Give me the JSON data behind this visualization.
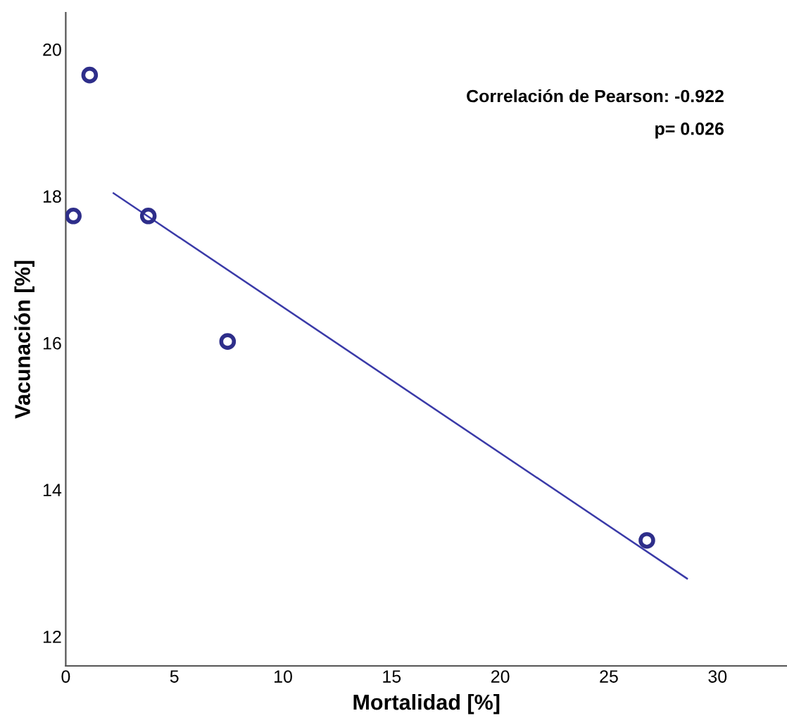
{
  "chart_data": {
    "type": "scatter",
    "xlabel": "Mortalidad [%]",
    "ylabel": "Vacunación [%]",
    "annotations": [
      "Correlación de Pearson: -0.922",
      "p= 0.026"
    ],
    "series": [
      {
        "color": "#2e2e8a",
        "x": [
          1.1,
          0.35,
          3.8,
          7.45,
          26.75
        ],
        "values": [
          19.65,
          17.73,
          17.73,
          16.02,
          13.31
        ],
        "marker": "circle"
      },
      {
        "type": "line",
        "color": "#3a3aa8",
        "x": [
          2.2,
          28.6
        ],
        "values": [
          18.04,
          12.79
        ],
        "line_style": "solid"
      }
    ],
    "xlim": [
      0,
      33.2
    ],
    "ylim": [
      11.6,
      20.5
    ],
    "xticks": [
      0,
      5,
      10,
      15,
      20,
      25,
      30
    ],
    "yticks": [
      12,
      14,
      16,
      18,
      20
    ],
    "grid": false,
    "legend": false
  }
}
